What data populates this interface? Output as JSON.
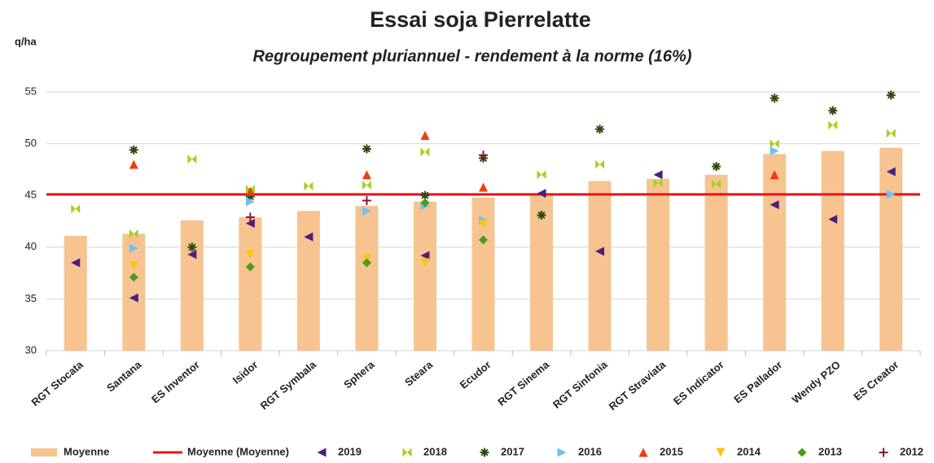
{
  "chart_data": {
    "type": "bar",
    "title": "Essai soja Pierrelatte",
    "subtitle": "Regroupement pluriannuel - rendement à la norme (16%)",
    "y_label": "q/ha",
    "categories": [
      "RGT Stocata",
      "Santana",
      "ES Inventor",
      "Isidor",
      "RGT Symbala",
      "Sphera",
      "Steara",
      "Ecudor",
      "RGT Sinema",
      "RGT Sinfonia",
      "RGT Straviata",
      "ES Indicator",
      "ES Pallador",
      "Wendy PZO",
      "ES Creator"
    ],
    "ylim": [
      30,
      55
    ],
    "yticks": [
      30,
      35,
      40,
      45,
      50,
      55
    ],
    "grid": true,
    "series": [
      {
        "name": "Moyenne",
        "type": "bar",
        "color": "#f6c391",
        "values": [
          41.1,
          41.3,
          42.6,
          42.9,
          43.5,
          44.0,
          44.4,
          44.8,
          45.1,
          46.4,
          46.6,
          47.0,
          49.0,
          49.3,
          49.6
        ]
      },
      {
        "name": "Moyenne (Moyenne)",
        "type": "line",
        "color": "#e3151b",
        "values": [
          45.1,
          45.1,
          45.1,
          45.1,
          45.1,
          45.1,
          45.1,
          45.1,
          45.1,
          45.1,
          45.1,
          45.1,
          45.1,
          45.1,
          45.1
        ]
      },
      {
        "name": "2019",
        "type": "scatter",
        "marker": "triangle-left",
        "color": "#4b1f7a",
        "values": [
          38.5,
          35.1,
          39.3,
          42.3,
          41.0,
          null,
          39.2,
          null,
          45.2,
          39.6,
          47.0,
          null,
          44.1,
          42.7,
          47.3
        ]
      },
      {
        "name": "2018",
        "type": "scatter",
        "marker": "bowtie",
        "color": "#a6d11e",
        "values": [
          43.7,
          41.3,
          48.5,
          45.6,
          45.9,
          46.0,
          49.2,
          null,
          47.0,
          48.0,
          46.2,
          46.1,
          50.0,
          51.8,
          51.0
        ]
      },
      {
        "name": "2017",
        "type": "scatter",
        "marker": "star",
        "color": "#2e4a10",
        "values": [
          null,
          49.4,
          40.0,
          44.9,
          null,
          49.5,
          45.0,
          48.6,
          43.1,
          51.4,
          null,
          47.8,
          54.4,
          53.2,
          54.7
        ]
      },
      {
        "name": "2016",
        "type": "scatter",
        "marker": "triangle-right",
        "color": "#6cc3f2",
        "values": [
          null,
          39.9,
          null,
          44.4,
          null,
          43.5,
          44.0,
          42.6,
          null,
          null,
          null,
          null,
          49.3,
          null,
          45.1
        ]
      },
      {
        "name": "2015",
        "type": "scatter",
        "marker": "triangle-up",
        "color": "#f03c0f",
        "values": [
          null,
          48.0,
          null,
          45.4,
          null,
          47.0,
          50.8,
          45.8,
          null,
          null,
          null,
          null,
          47.0,
          null,
          null
        ]
      },
      {
        "name": "2014",
        "type": "scatter",
        "marker": "triangle-down",
        "color": "#f9c80e",
        "values": [
          null,
          38.2,
          null,
          39.3,
          null,
          38.9,
          38.5,
          42.2,
          null,
          null,
          null,
          null,
          null,
          null,
          null
        ]
      },
      {
        "name": "2013",
        "type": "scatter",
        "marker": "diamond",
        "color": "#4e9a1e",
        "values": [
          null,
          37.1,
          null,
          38.1,
          null,
          38.5,
          44.3,
          40.7,
          null,
          null,
          null,
          null,
          null,
          null,
          null
        ]
      },
      {
        "name": "2012",
        "type": "scatter",
        "marker": "plus",
        "color": "#8a1538",
        "values": [
          null,
          null,
          null,
          42.9,
          null,
          44.5,
          null,
          48.9,
          null,
          null,
          null,
          null,
          null,
          null,
          null
        ]
      }
    ]
  }
}
